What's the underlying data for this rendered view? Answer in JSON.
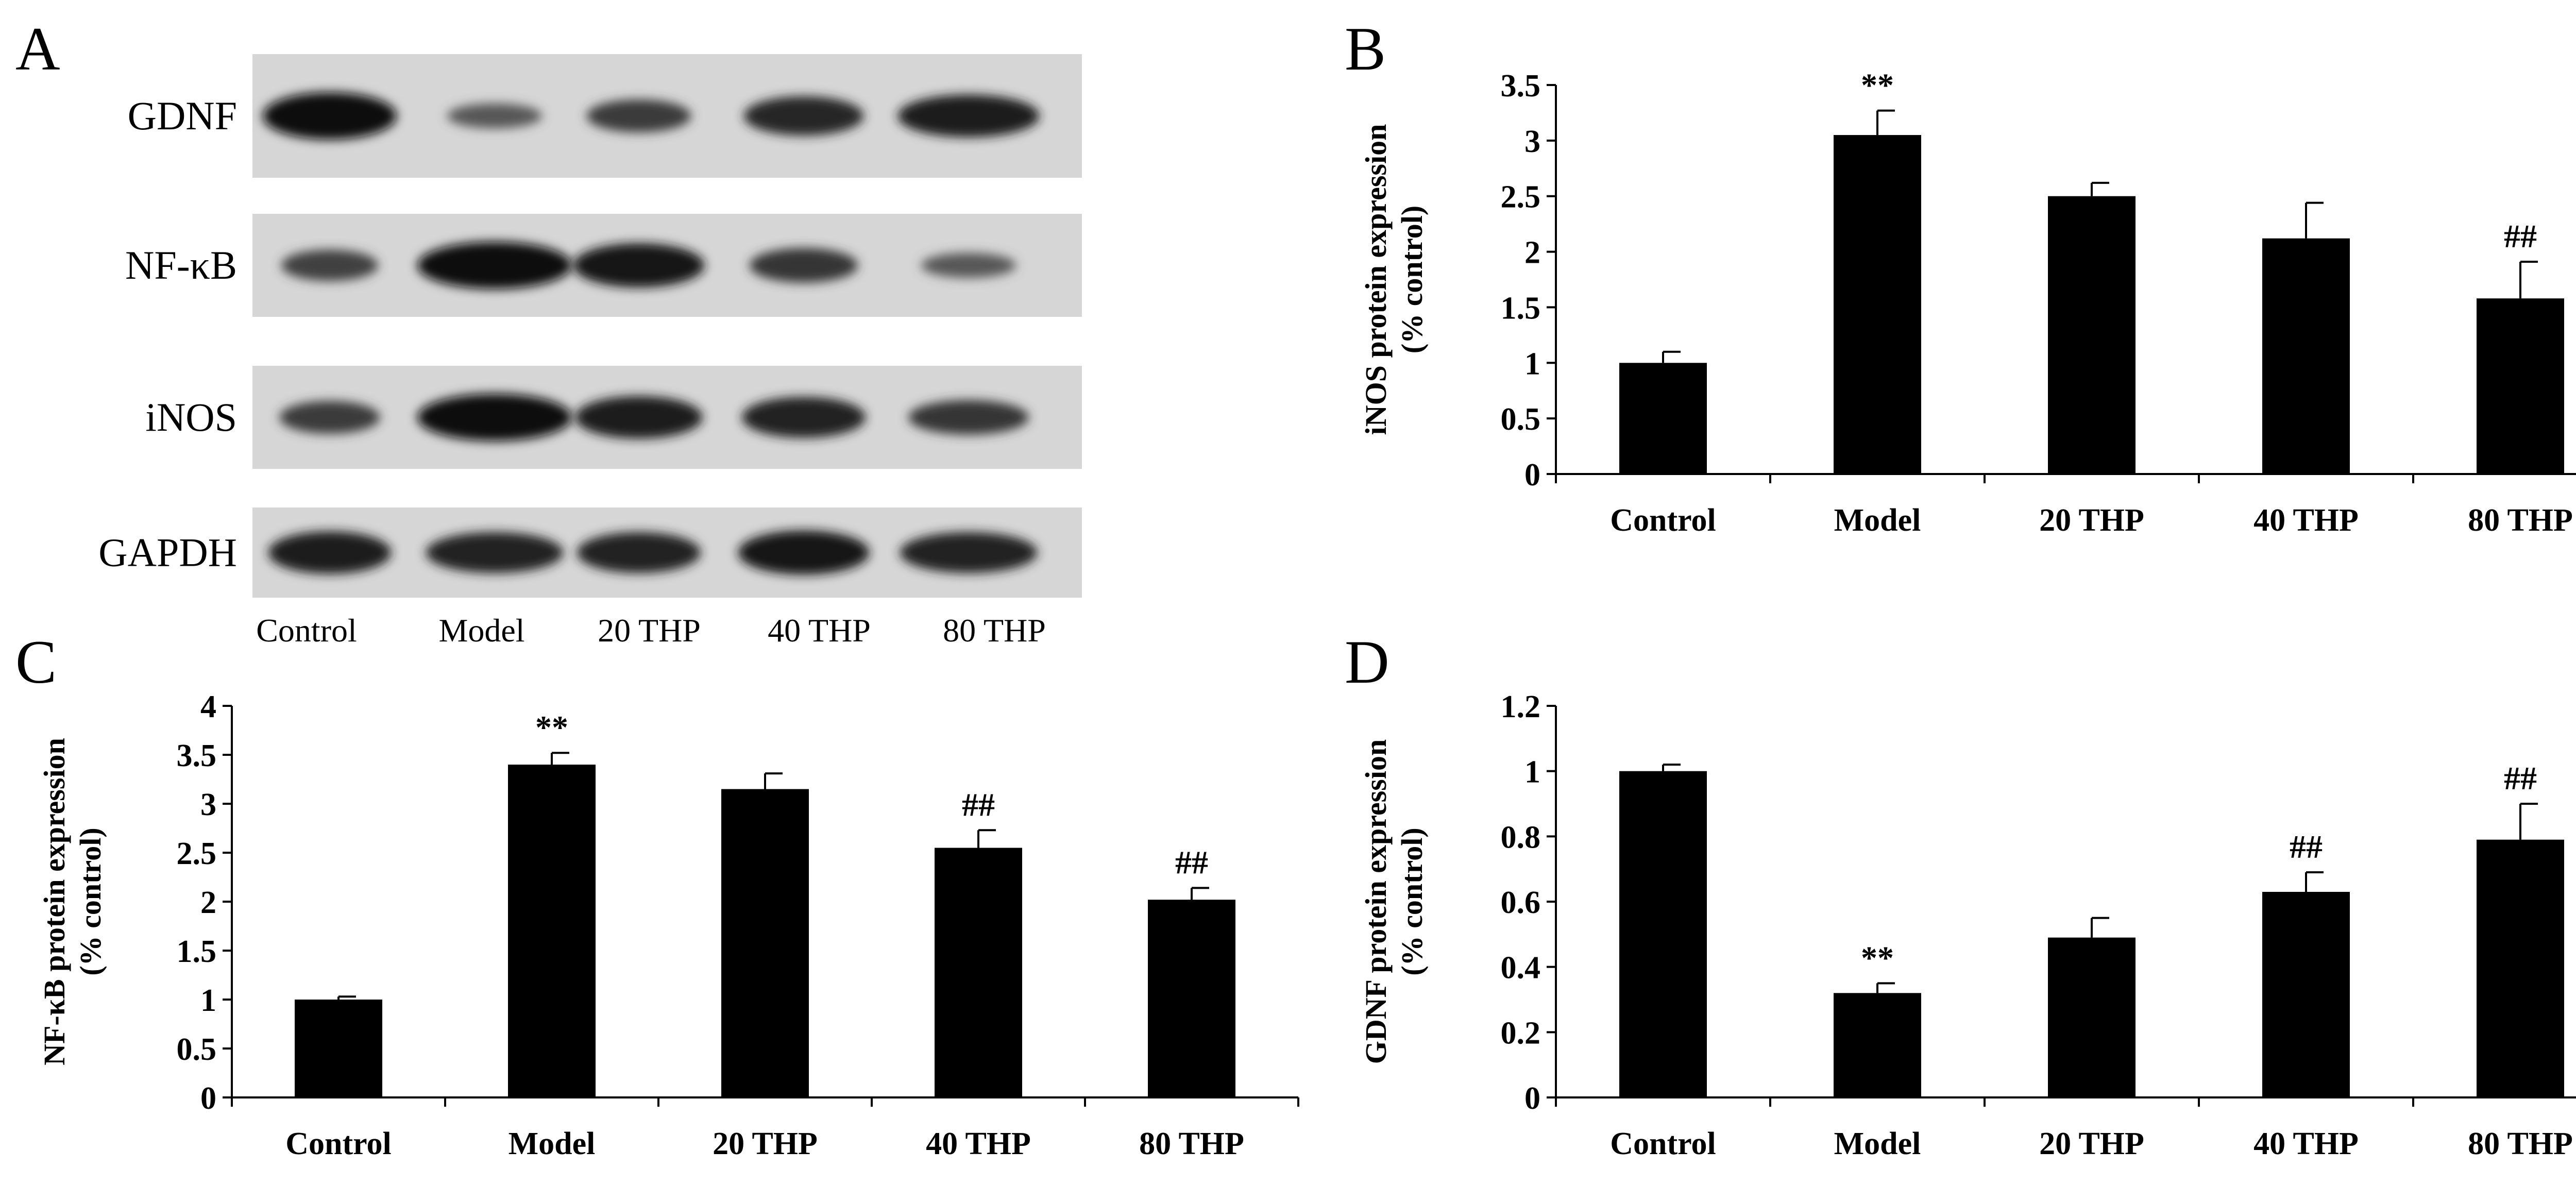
{
  "panels": {
    "a": "A",
    "b": "B",
    "c": "C",
    "d": "D"
  },
  "blot": {
    "proteins": [
      "GDNF",
      "NF-κB",
      "iNOS",
      "GAPDH"
    ],
    "lanes": [
      "Control",
      "Model",
      "20 THP",
      "40 THP",
      "80 THP"
    ],
    "band_intensity": {
      "GDNF": [
        1.0,
        0.3,
        0.55,
        0.75,
        0.85
      ],
      "NF-κB": [
        0.5,
        1.0,
        0.9,
        0.6,
        0.3
      ],
      "iNOS": [
        0.55,
        1.0,
        0.85,
        0.8,
        0.6
      ],
      "GAPDH": [
        0.85,
        0.8,
        0.8,
        0.9,
        0.8
      ]
    }
  },
  "chart_data": [
    {
      "id": "b",
      "type": "bar",
      "ylabel": [
        "iNOS protein expression",
        "(% control)"
      ],
      "categories": [
        "Control",
        "Model",
        "20 THP",
        "40 THP",
        "80 THP"
      ],
      "values": [
        1.0,
        3.05,
        2.5,
        2.12,
        1.58
      ],
      "errors": [
        0.1,
        0.22,
        0.12,
        0.32,
        0.33
      ],
      "annotations": [
        "",
        "**",
        "",
        "",
        "##"
      ],
      "ylim": [
        0,
        3.5
      ],
      "yticks": [
        0,
        0.5,
        1,
        1.5,
        2,
        2.5,
        3,
        3.5
      ],
      "ytick_labels": [
        "0",
        "0.5",
        "1",
        "1.5",
        "2",
        "2.5",
        "3",
        "3.5"
      ],
      "bar_color": "#000000"
    },
    {
      "id": "c",
      "type": "bar",
      "ylabel": [
        "NF-κB protein expression",
        "(% control)"
      ],
      "categories": [
        "Control",
        "Model",
        "20 THP",
        "40 THP",
        "80 THP"
      ],
      "values": [
        1.0,
        3.4,
        3.15,
        2.55,
        2.02
      ],
      "errors": [
        0.03,
        0.12,
        0.16,
        0.18,
        0.12
      ],
      "annotations": [
        "",
        "**",
        "",
        "##",
        "##"
      ],
      "ylim": [
        0,
        4
      ],
      "yticks": [
        0,
        0.5,
        1,
        1.5,
        2,
        2.5,
        3,
        3.5,
        4
      ],
      "ytick_labels": [
        "0",
        "0.5",
        "1",
        "1.5",
        "2",
        "2.5",
        "3",
        "3.5",
        "4"
      ],
      "bar_color": "#000000"
    },
    {
      "id": "d",
      "type": "bar",
      "ylabel": [
        "GDNF protein expression",
        "(% control)"
      ],
      "categories": [
        "Control",
        "Model",
        "20 THP",
        "40 THP",
        "80 THP"
      ],
      "values": [
        1.0,
        0.32,
        0.49,
        0.63,
        0.79
      ],
      "errors": [
        0.02,
        0.03,
        0.06,
        0.06,
        0.11
      ],
      "annotations": [
        "",
        "**",
        "",
        "##",
        "##"
      ],
      "ylim": [
        0,
        1.2
      ],
      "yticks": [
        0,
        0.2,
        0.4,
        0.6,
        0.8,
        1,
        1.2
      ],
      "ytick_labels": [
        "0",
        "0.2",
        "0.4",
        "0.6",
        "0.8",
        "1",
        "1.2"
      ],
      "bar_color": "#000000"
    }
  ]
}
